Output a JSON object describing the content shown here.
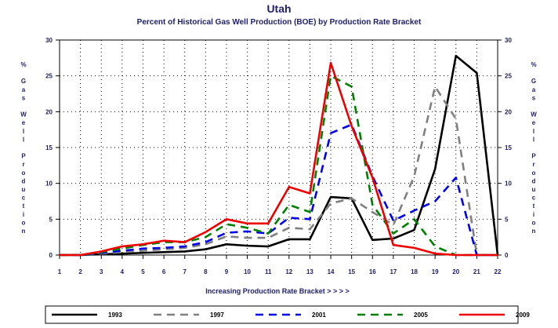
{
  "chart_data": {
    "type": "line",
    "title": "Utah",
    "subtitle": "Percent of Historical Gas Well Production (BOE) by Production Rate Bracket",
    "xlabel": "Increasing Production Rate Bracket > > > >",
    "ylabel": "% Gas Well Production",
    "x": [
      1,
      2,
      3,
      4,
      5,
      6,
      7,
      8,
      9,
      10,
      11,
      12,
      13,
      14,
      15,
      16,
      17,
      18,
      19,
      20,
      21,
      22
    ],
    "xlim": [
      1,
      22
    ],
    "ylim": [
      0,
      30
    ],
    "yticks": [
      0,
      5,
      10,
      15,
      20,
      25,
      30
    ],
    "grid": true,
    "legend_position": "bottom",
    "series": [
      {
        "name": "1993",
        "color": "#000000",
        "dash": "solid",
        "values": [
          0,
          0,
          0.1,
          0.2,
          0.3,
          0.4,
          0.5,
          0.8,
          1.5,
          1.3,
          1.2,
          2.2,
          2.2,
          8.1,
          7.9,
          2.1,
          2.3,
          3.5,
          12.0,
          27.8,
          25.4,
          0
        ]
      },
      {
        "name": "1997",
        "color": "#808080",
        "dash": "dashed",
        "values": [
          0,
          0,
          0.2,
          0.4,
          0.6,
          0.8,
          1.0,
          1.5,
          2.6,
          2.4,
          2.4,
          3.8,
          3.6,
          7.2,
          7.9,
          6.0,
          4.2,
          11.0,
          23.5,
          19.0,
          0,
          0
        ]
      },
      {
        "name": "2001",
        "color": "#0000ee",
        "dash": "dashed",
        "values": [
          0,
          0,
          0.3,
          0.6,
          0.9,
          1.0,
          1.2,
          1.8,
          3.1,
          3.3,
          3.0,
          5.2,
          5.0,
          17.0,
          18.2,
          11.0,
          4.8,
          6.2,
          7.5,
          10.8,
          0,
          0
        ]
      },
      {
        "name": "2005",
        "color": "#008000",
        "dash": "dashed",
        "values": [
          0,
          0,
          0.4,
          0.9,
          1.4,
          1.8,
          1.8,
          2.5,
          4.3,
          3.8,
          3.0,
          7.0,
          6.0,
          25.0,
          23.5,
          7.0,
          3.0,
          5.0,
          1.2,
          0,
          0,
          0
        ]
      },
      {
        "name": "2009",
        "color": "#ee0000",
        "dash": "solid",
        "values": [
          0,
          0,
          0.5,
          1.2,
          1.5,
          2.0,
          1.8,
          3.2,
          5.0,
          4.4,
          4.4,
          9.5,
          8.6,
          26.8,
          18.0,
          10.8,
          1.4,
          1.0,
          0.2,
          0,
          0,
          0
        ]
      }
    ]
  }
}
